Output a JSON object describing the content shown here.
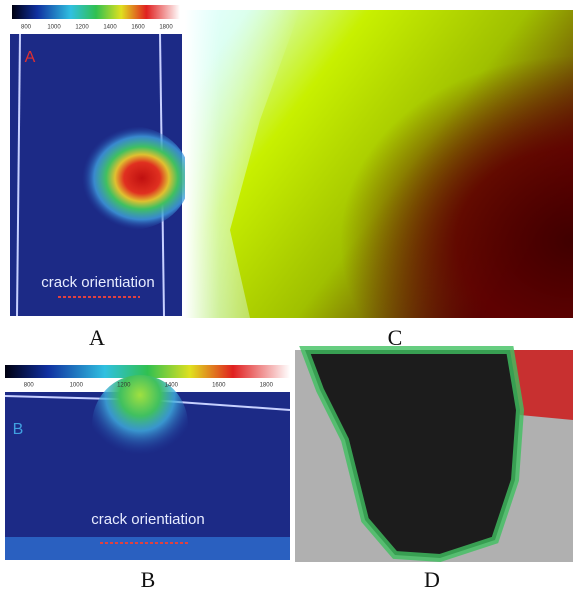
{
  "panels": [
    {
      "caption": "A",
      "inset_label": "A",
      "annotation": "crack orientiation",
      "colorbar_ticks": [
        800,
        1000,
        1200,
        1400,
        1600,
        1800
      ]
    },
    {
      "caption": "C"
    },
    {
      "caption": "B",
      "inset_label": "B",
      "annotation": "crack orientiation",
      "colorbar_ticks": [
        800,
        1000,
        1200,
        1400,
        1600,
        1800
      ]
    },
    {
      "caption": "D"
    }
  ]
}
